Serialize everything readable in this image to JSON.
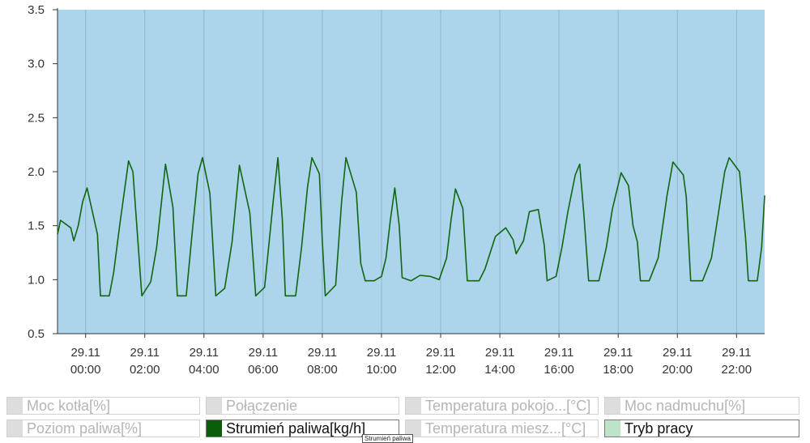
{
  "chart_data": {
    "type": "line",
    "xlabel": "",
    "ylabel": "",
    "ylim": [
      0.5,
      3.5
    ],
    "y_ticks": [
      "0.5",
      "1.0",
      "1.5",
      "2.0",
      "2.5",
      "3.0",
      "3.5"
    ],
    "x_range_hours": [
      -0.95,
      22.95
    ],
    "x_ticks": [
      {
        "hour": 0,
        "date": "29.11",
        "time": "00:00"
      },
      {
        "hour": 2,
        "date": "29.11",
        "time": "02:00"
      },
      {
        "hour": 4,
        "date": "29.11",
        "time": "04:00"
      },
      {
        "hour": 6,
        "date": "29.11",
        "time": "06:00"
      },
      {
        "hour": 8,
        "date": "29.11",
        "time": "08:00"
      },
      {
        "hour": 10,
        "date": "29.11",
        "time": "10:00"
      },
      {
        "hour": 12,
        "date": "29.11",
        "time": "12:00"
      },
      {
        "hour": 14,
        "date": "29.11",
        "time": "14:00"
      },
      {
        "hour": 16,
        "date": "29.11",
        "time": "16:00"
      },
      {
        "hour": 18,
        "date": "29.11",
        "time": "18:00"
      },
      {
        "hour": 20,
        "date": "29.11",
        "time": "20:00"
      },
      {
        "hour": 22,
        "date": "29.11",
        "time": "22:00"
      }
    ],
    "grid": {
      "horizontal": false,
      "vertical": true
    },
    "background_color": "#acd4ea",
    "series": [
      {
        "name": "Strumień paliwa[kg/h]",
        "color": "#116611",
        "points": [
          [
            -0.95,
            1.42
          ],
          [
            -0.85,
            1.55
          ],
          [
            -0.5,
            1.48
          ],
          [
            -0.4,
            1.36
          ],
          [
            -0.25,
            1.5
          ],
          [
            -0.1,
            1.72
          ],
          [
            0.05,
            1.85
          ],
          [
            0.4,
            1.42
          ],
          [
            0.5,
            0.85
          ],
          [
            0.8,
            0.85
          ],
          [
            0.95,
            1.07
          ],
          [
            1.15,
            1.5
          ],
          [
            1.45,
            2.1
          ],
          [
            1.6,
            2.0
          ],
          [
            1.9,
            0.85
          ],
          [
            2.2,
            0.98
          ],
          [
            2.4,
            1.3
          ],
          [
            2.7,
            2.07
          ],
          [
            2.95,
            1.67
          ],
          [
            3.1,
            0.85
          ],
          [
            3.4,
            0.85
          ],
          [
            3.6,
            1.43
          ],
          [
            3.8,
            1.98
          ],
          [
            3.95,
            2.13
          ],
          [
            4.2,
            1.8
          ],
          [
            4.4,
            0.85
          ],
          [
            4.7,
            0.92
          ],
          [
            4.95,
            1.35
          ],
          [
            5.2,
            2.06
          ],
          [
            5.55,
            1.62
          ],
          [
            5.75,
            0.85
          ],
          [
            6.05,
            0.93
          ],
          [
            6.35,
            1.75
          ],
          [
            6.5,
            2.13
          ],
          [
            6.65,
            1.55
          ],
          [
            6.75,
            0.85
          ],
          [
            7.1,
            0.85
          ],
          [
            7.3,
            1.3
          ],
          [
            7.5,
            1.86
          ],
          [
            7.65,
            2.13
          ],
          [
            7.9,
            1.98
          ],
          [
            8.0,
            1.36
          ],
          [
            8.1,
            0.85
          ],
          [
            8.45,
            0.95
          ],
          [
            8.65,
            1.72
          ],
          [
            8.8,
            2.13
          ],
          [
            9.15,
            1.81
          ],
          [
            9.3,
            1.15
          ],
          [
            9.45,
            0.99
          ],
          [
            9.75,
            0.99
          ],
          [
            10.0,
            1.03
          ],
          [
            10.15,
            1.2
          ],
          [
            10.3,
            1.55
          ],
          [
            10.45,
            1.85
          ],
          [
            10.6,
            1.5
          ],
          [
            10.7,
            1.02
          ],
          [
            11.0,
            0.99
          ],
          [
            11.3,
            1.04
          ],
          [
            11.65,
            1.03
          ],
          [
            11.95,
            1.0
          ],
          [
            12.2,
            1.2
          ],
          [
            12.35,
            1.55
          ],
          [
            12.5,
            1.84
          ],
          [
            12.75,
            1.66
          ],
          [
            12.9,
            0.99
          ],
          [
            13.3,
            0.99
          ],
          [
            13.5,
            1.1
          ],
          [
            13.85,
            1.4
          ],
          [
            14.2,
            1.48
          ],
          [
            14.45,
            1.37
          ],
          [
            14.55,
            1.24
          ],
          [
            14.8,
            1.36
          ],
          [
            15.0,
            1.63
          ],
          [
            15.3,
            1.65
          ],
          [
            15.5,
            1.32
          ],
          [
            15.6,
            0.99
          ],
          [
            15.9,
            1.03
          ],
          [
            16.1,
            1.3
          ],
          [
            16.3,
            1.63
          ],
          [
            16.55,
            1.97
          ],
          [
            16.7,
            2.07
          ],
          [
            16.85,
            1.57
          ],
          [
            17.0,
            0.99
          ],
          [
            17.35,
            0.99
          ],
          [
            17.6,
            1.3
          ],
          [
            17.8,
            1.65
          ],
          [
            18.1,
            1.99
          ],
          [
            18.35,
            1.87
          ],
          [
            18.5,
            1.5
          ],
          [
            18.65,
            1.35
          ],
          [
            18.75,
            0.99
          ],
          [
            19.05,
            0.99
          ],
          [
            19.35,
            1.2
          ],
          [
            19.65,
            1.78
          ],
          [
            19.85,
            2.09
          ],
          [
            20.2,
            1.97
          ],
          [
            20.3,
            1.77
          ],
          [
            20.45,
            0.99
          ],
          [
            20.85,
            0.99
          ],
          [
            21.15,
            1.2
          ],
          [
            21.35,
            1.55
          ],
          [
            21.6,
            2.0
          ],
          [
            21.75,
            2.13
          ],
          [
            22.1,
            2.0
          ],
          [
            22.3,
            1.4
          ],
          [
            22.4,
            0.99
          ],
          [
            22.7,
            0.99
          ],
          [
            22.85,
            1.3
          ],
          [
            22.95,
            1.78
          ]
        ]
      }
    ]
  },
  "legend": {
    "items": [
      {
        "label": "Moc kotła[%]",
        "color": "#dddddd",
        "active": false
      },
      {
        "label": "Połączenie",
        "color": "#dddddd",
        "active": false
      },
      {
        "label": "Temperatura pokojo...[°C]",
        "color": "#dddddd",
        "active": false
      },
      {
        "label": "Moc nadmuchu[%]",
        "color": "#dddddd",
        "active": false
      },
      {
        "label": "Poziom paliwa[%]",
        "color": "#dddddd",
        "active": false
      },
      {
        "label": "Strumień paliwa[kg/h]",
        "color": "#0a5e0a",
        "active": true
      },
      {
        "label": "Temperatura miesz...[°C]",
        "color": "#dddddd",
        "active": false
      },
      {
        "label": "Tryb pracy",
        "color": "#bfe3c9",
        "active": true
      }
    ],
    "tooltip": "Strumień paliwa"
  }
}
